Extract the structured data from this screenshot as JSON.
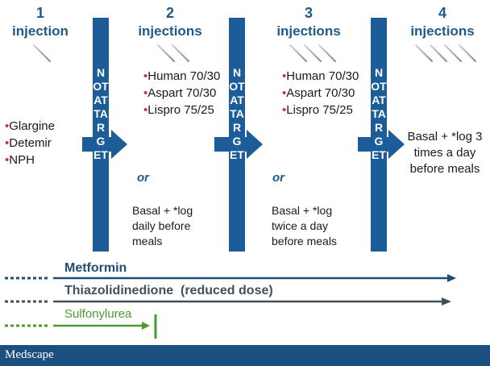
{
  "steps": [
    {
      "number": "1",
      "label": "injection"
    },
    {
      "number": "2",
      "label": "injections"
    },
    {
      "number": "3",
      "label": "injections"
    },
    {
      "number": "4",
      "label": "injections"
    }
  ],
  "barrier_text": "NOT AT TARGET",
  "step1_items": [
    "Glargine",
    "Detemir",
    "NPH"
  ],
  "step2_items": [
    "Human 70/30",
    "Aspart 70/30",
    "Lispro 75/25"
  ],
  "step3_items": [
    "Human 70/30",
    "Aspart 70/30",
    "Lispro 75/25"
  ],
  "or_label": "or",
  "step2_alt": "Basal + *log daily before meals",
  "step3_alt": "Basal + *log twice a day before meals",
  "step4_text": "Basal + *log 3 times a day before meals",
  "therapies": [
    {
      "name": "Metformin",
      "color": "#1f4e79"
    },
    {
      "name": "Thiazolidinedione  (reduced dose)",
      "color": "#444f5a"
    },
    {
      "name": "Sulfonylurea",
      "color": "#4e9a2e"
    }
  ],
  "brand": "Medscape",
  "colors": {
    "accent": "#1f5a8a",
    "barrier": "#1b5c99",
    "bullet": "#c0392b",
    "footer": "#1b4f80"
  }
}
